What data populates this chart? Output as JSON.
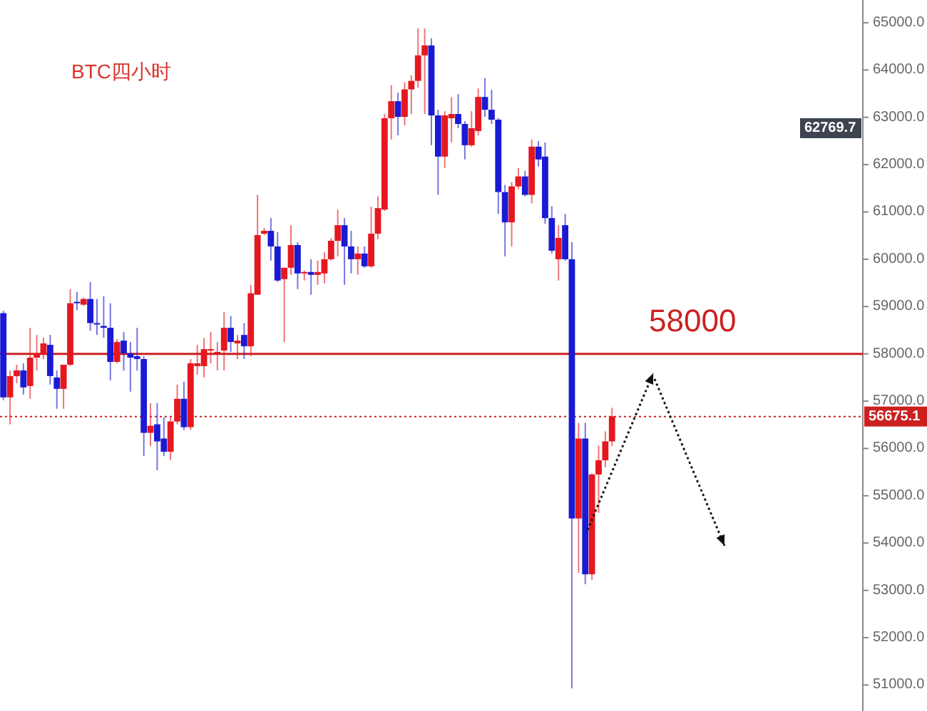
{
  "chart_data": {
    "type": "candlestick",
    "title": "BTC四小时",
    "categories": [
      null,
      null,
      null,
      null,
      null,
      null,
      null,
      null,
      null,
      null,
      null,
      null,
      null,
      null,
      null,
      null,
      null,
      null,
      null,
      null,
      null,
      null,
      null,
      null,
      null,
      null,
      null,
      null,
      null,
      null,
      null,
      null,
      null,
      null,
      null,
      null,
      null,
      null,
      null,
      null,
      null,
      null,
      null,
      null,
      null,
      null,
      null,
      null,
      null,
      null,
      null,
      null,
      null,
      null,
      null,
      null,
      null,
      null,
      null,
      null,
      null,
      null,
      null,
      null,
      null,
      null,
      null,
      null,
      null,
      null,
      null,
      null,
      null,
      null,
      null,
      null,
      null,
      null,
      null,
      null,
      null,
      null,
      null,
      null,
      null,
      null,
      null,
      null,
      null,
      null,
      null,
      null,
      null,
      null,
      null,
      null,
      null,
      null,
      null,
      null,
      null,
      null,
      null,
      null,
      null,
      null,
      null,
      null,
      null,
      null,
      null,
      null,
      null,
      null,
      null,
      null,
      null,
      null,
      null,
      null,
      null,
      null,
      null,
      null,
      null,
      null,
      null,
      null,
      null
    ],
    "ohlc": [
      [
        58860,
        58910,
        57020,
        57080
      ],
      [
        57080,
        57650,
        56510,
        57530
      ],
      [
        57530,
        57770,
        57380,
        57650
      ],
      [
        57650,
        57800,
        57140,
        57290
      ],
      [
        57320,
        58550,
        57050,
        57920
      ],
      [
        57920,
        58400,
        57650,
        58010
      ],
      [
        57980,
        58340,
        57890,
        58220
      ],
      [
        58190,
        58400,
        57350,
        57530
      ],
      [
        57500,
        57650,
        56840,
        57260
      ],
      [
        57260,
        57770,
        56840,
        57770
      ],
      [
        57770,
        59370,
        57740,
        59070
      ],
      [
        59100,
        59310,
        58920,
        59070
      ],
      [
        59040,
        59190,
        59010,
        59160
      ],
      [
        59160,
        59520,
        58490,
        58650
      ],
      [
        58650,
        59160,
        58400,
        58620
      ],
      [
        58590,
        59220,
        58340,
        58550
      ],
      [
        58550,
        59070,
        57440,
        57830
      ],
      [
        57830,
        58310,
        57800,
        58250
      ],
      [
        58280,
        58460,
        57650,
        58010
      ],
      [
        58010,
        58250,
        57200,
        57920
      ],
      [
        57950,
        58550,
        57650,
        57890
      ],
      [
        57890,
        57950,
        55840,
        56330
      ],
      [
        56330,
        56960,
        56050,
        56480
      ],
      [
        56510,
        56960,
        55540,
        56150
      ],
      [
        56210,
        56660,
        55840,
        55930
      ],
      [
        55930,
        56660,
        55750,
        56570
      ],
      [
        56570,
        57350,
        56510,
        57050
      ],
      [
        57050,
        57410,
        56390,
        56450
      ],
      [
        56450,
        57890,
        56390,
        57800
      ],
      [
        57740,
        58190,
        57560,
        57800
      ],
      [
        57740,
        58340,
        57500,
        58100
      ],
      [
        58070,
        58460,
        57800,
        58100
      ],
      [
        58010,
        58250,
        57650,
        58040
      ],
      [
        58070,
        58890,
        57650,
        58550
      ],
      [
        58550,
        58800,
        58040,
        58250
      ],
      [
        58220,
        58400,
        57890,
        58280
      ],
      [
        58400,
        58650,
        57890,
        58160
      ],
      [
        58160,
        59460,
        57950,
        59280
      ],
      [
        59250,
        61360,
        59250,
        60510
      ],
      [
        60540,
        60660,
        60510,
        60600
      ],
      [
        60600,
        60870,
        59970,
        60270
      ],
      [
        60270,
        60570,
        59520,
        59550
      ],
      [
        59580,
        59820,
        58250,
        59820
      ],
      [
        59820,
        60720,
        59670,
        60300
      ],
      [
        60300,
        60360,
        59370,
        59700
      ],
      [
        59700,
        59760,
        59550,
        59730
      ],
      [
        59730,
        60000,
        59250,
        59670
      ],
      [
        59670,
        59970,
        59460,
        59730
      ],
      [
        59700,
        60150,
        59490,
        60000
      ],
      [
        60000,
        60450,
        59970,
        60390
      ],
      [
        60390,
        61050,
        60060,
        60720
      ],
      [
        60720,
        60870,
        59460,
        60270
      ],
      [
        60270,
        60600,
        59700,
        60000
      ],
      [
        60000,
        60270,
        59670,
        60120
      ],
      [
        60120,
        60270,
        59820,
        59850
      ],
      [
        59850,
        61110,
        59820,
        60540
      ],
      [
        60540,
        61330,
        60420,
        61080
      ],
      [
        61050,
        63070,
        61020,
        62980
      ],
      [
        62980,
        63680,
        62530,
        63340
      ],
      [
        63340,
        63520,
        62620,
        63010
      ],
      [
        63010,
        63740,
        62830,
        63590
      ],
      [
        63590,
        63890,
        63070,
        63770
      ],
      [
        63770,
        64880,
        63620,
        64310
      ],
      [
        64310,
        64880,
        63070,
        64520
      ],
      [
        64520,
        64670,
        62410,
        63040
      ],
      [
        63040,
        63160,
        61360,
        62170
      ],
      [
        62170,
        63130,
        61930,
        63040
      ],
      [
        62980,
        63430,
        62470,
        63070
      ],
      [
        63070,
        63490,
        62770,
        62860
      ],
      [
        62860,
        62920,
        62110,
        62410
      ],
      [
        62410,
        63130,
        62380,
        62770
      ],
      [
        62710,
        63610,
        62620,
        63430
      ],
      [
        63430,
        63830,
        63010,
        63160
      ],
      [
        63160,
        63580,
        62860,
        62950
      ],
      [
        62950,
        62980,
        60960,
        61420
      ],
      [
        61420,
        61570,
        60060,
        60780
      ],
      [
        60780,
        61630,
        60270,
        61540
      ],
      [
        61540,
        61930,
        61480,
        61750
      ],
      [
        61750,
        61870,
        61330,
        61360
      ],
      [
        61360,
        62530,
        61180,
        62380
      ],
      [
        62380,
        62500,
        61960,
        62110
      ],
      [
        62170,
        62470,
        60750,
        60870
      ],
      [
        60870,
        61120,
        60120,
        60180
      ],
      [
        60000,
        60720,
        59550,
        60450
      ],
      [
        60720,
        60960,
        59970,
        60000
      ],
      [
        60000,
        60360,
        50930,
        54520
      ],
      [
        54520,
        56540,
        53370,
        56210
      ],
      [
        56210,
        56540,
        53130,
        53340
      ],
      [
        53340,
        55480,
        53220,
        55450
      ],
      [
        55450,
        56060,
        54640,
        55750
      ],
      [
        55750,
        56360,
        55600,
        56150
      ],
      [
        56150,
        56860,
        56050,
        56680
      ],
      null,
      null,
      null,
      null,
      null,
      null,
      null,
      null,
      null,
      null,
      null,
      null,
      null,
      null,
      null,
      null,
      null,
      null,
      null,
      null,
      null,
      null,
      null,
      null,
      null,
      null,
      null,
      null,
      null,
      null,
      null,
      null,
      null,
      null,
      null,
      null,
      null
    ],
    "colors": [
      "#1a1ad4",
      "#e5171f",
      "#e5171f",
      "#1a1ad4",
      "#e5171f",
      "#e5171f",
      "#e5171f",
      "#1a1ad4",
      "#1a1ad4",
      "#e5171f",
      "#e5171f",
      "#1a1ad4",
      "#e5171f",
      "#1a1ad4",
      "#1a1ad4",
      "#1a1ad4",
      "#1a1ad4",
      "#e5171f",
      "#1a1ad4",
      "#1a1ad4",
      "#1a1ad4",
      "#1a1ad4",
      "#e5171f",
      "#1a1ad4",
      "#1a1ad4",
      "#e5171f",
      "#e5171f",
      "#1a1ad4",
      "#e5171f",
      "#e5171f",
      "#e5171f",
      "#e5171f",
      "#e5171f",
      "#e5171f",
      "#1a1ad4",
      "#e5171f",
      "#1a1ad4",
      "#e5171f",
      "#e5171f",
      "#e5171f",
      "#1a1ad4",
      "#1a1ad4",
      "#e5171f",
      "#e5171f",
      "#1a1ad4",
      "#e5171f",
      "#1a1ad4",
      "#e5171f",
      "#e5171f",
      "#e5171f",
      "#e5171f",
      "#1a1ad4",
      "#1a1ad4",
      "#e5171f",
      "#1a1ad4",
      "#e5171f",
      "#e5171f",
      "#e5171f",
      "#e5171f",
      "#1a1ad4",
      "#e5171f",
      "#e5171f",
      "#e5171f",
      "#e5171f",
      "#1a1ad4",
      "#1a1ad4",
      "#e5171f",
      "#e5171f",
      "#1a1ad4",
      "#1a1ad4",
      "#e5171f",
      "#e5171f",
      "#1a1ad4",
      "#1a1ad4",
      "#1a1ad4",
      "#1a1ad4",
      "#e5171f",
      "#e5171f",
      "#1a1ad4",
      "#e5171f",
      "#1a1ad4",
      "#1a1ad4",
      "#1a1ad4",
      "#e5171f",
      "#1a1ad4",
      "#1a1ad4",
      "#e5171f",
      "#1a1ad4",
      "#e5171f",
      "#e5171f",
      "#e5171f",
      "#e5171f",
      null,
      null,
      null,
      null,
      null,
      null,
      null,
      null,
      null,
      null,
      null,
      null,
      null,
      null,
      null,
      null,
      null,
      null,
      null,
      null,
      null,
      null,
      null,
      null,
      null,
      null,
      null,
      null,
      null,
      null,
      null,
      null,
      null,
      null,
      null,
      null,
      null
    ],
    "ylim": [
      50450,
      65480
    ],
    "yticks": [
      {
        "value": 51000,
        "label": "51000.0"
      },
      {
        "value": 52000,
        "label": "52000.0"
      },
      {
        "value": 53000,
        "label": "53000.0"
      },
      {
        "value": 54000,
        "label": "54000.0"
      },
      {
        "value": 55000,
        "label": "55000.0"
      },
      {
        "value": 56000,
        "label": "56000.0"
      },
      {
        "value": 57000,
        "label": "57000.0"
      },
      {
        "value": 58000,
        "label": "58000.0"
      },
      {
        "value": 59000,
        "label": "59000.0"
      },
      {
        "value": 60000,
        "label": "60000.0"
      },
      {
        "value": 61000,
        "label": "61000.0"
      },
      {
        "value": 62000,
        "label": "62000.0"
      },
      {
        "value": 63000,
        "label": "63000.0"
      },
      {
        "value": 64000,
        "label": "64000.0"
      },
      {
        "value": 65000,
        "label": "65000.0"
      }
    ],
    "ref_lines": [
      {
        "axis": "y",
        "value": 58000,
        "label": "58000",
        "color": "#cc2020",
        "line_style": "solid"
      },
      {
        "axis": "y",
        "value": 56675.1,
        "label": "56675.1",
        "color": "#cc2020",
        "line_style": "dotted"
      }
    ],
    "annotations": [
      {
        "text": "62769.7",
        "y": 62769.7
      }
    ],
    "grid": false
  }
}
